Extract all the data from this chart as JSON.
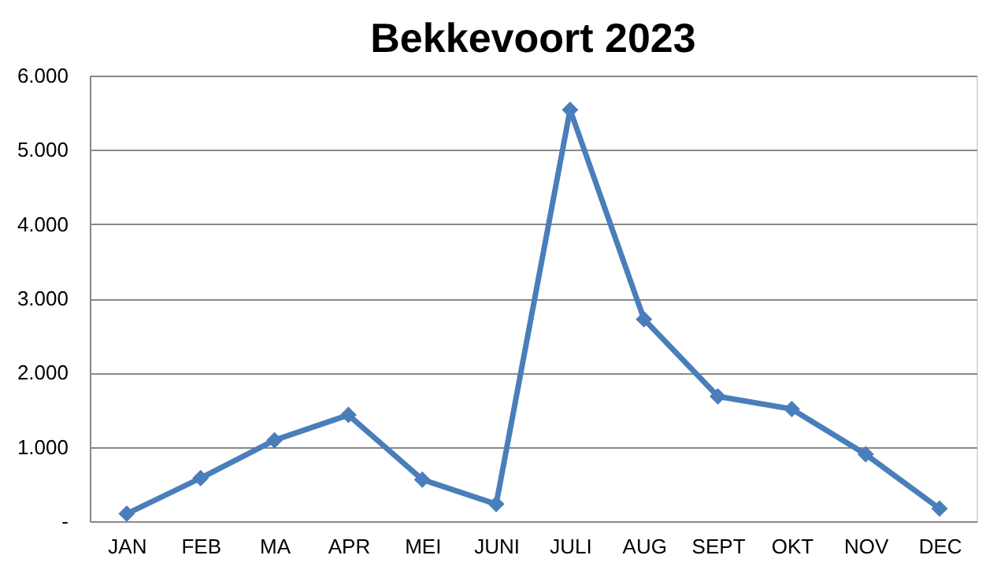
{
  "chart_data": {
    "type": "line",
    "title": "Bekkevoort 2023",
    "categories": [
      "JAN",
      "FEB",
      "MA",
      "APR",
      "MEI",
      "JUNI",
      "JULI",
      "AUG",
      "SEPT",
      "OKT",
      "NOV",
      "DEC"
    ],
    "series": [
      {
        "color": "#4a7ebb",
        "values": [
          100,
          580,
          1090,
          1430,
          560,
          230,
          5540,
          2720,
          1680,
          1510,
          900,
          170
        ]
      }
    ],
    "ylim": [
      0,
      6000
    ],
    "yticks": [
      {
        "value": 0,
        "label": "-"
      },
      {
        "value": 1000,
        "label": "1.000"
      },
      {
        "value": 2000,
        "label": "2.000"
      },
      {
        "value": 3000,
        "label": "3.000"
      },
      {
        "value": 4000,
        "label": "4.000"
      },
      {
        "value": 5000,
        "label": "5.000"
      },
      {
        "value": 6000,
        "label": "6.000"
      }
    ],
    "grid": "y",
    "marker": "diamond",
    "line_style": "solid"
  }
}
